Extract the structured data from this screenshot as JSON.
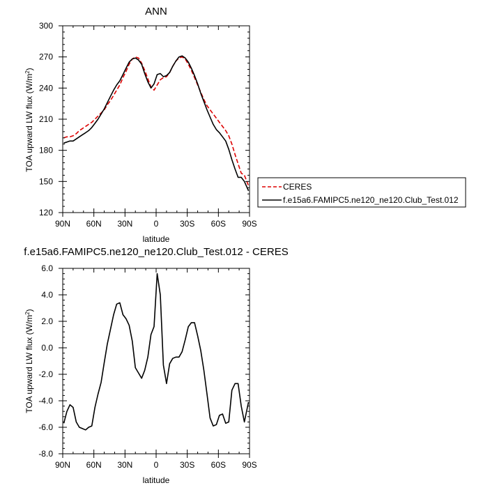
{
  "chart_data": [
    {
      "type": "line",
      "title": "ANN",
      "xlabel": "latitude",
      "ylabel": "TOA upward LW flux (W/m",
      "ylabel_sup": "2",
      "ylabel_close": ")",
      "xlim": [
        90,
        -90
      ],
      "ylim": [
        120,
        300
      ],
      "xticks": [
        90,
        60,
        30,
        0,
        -30,
        -60,
        -90
      ],
      "xticklabels": [
        "90N",
        "60N",
        "30N",
        "0",
        "30S",
        "60S",
        "90S"
      ],
      "yticks": [
        120,
        150,
        180,
        210,
        240,
        270,
        300
      ],
      "yticklabels": [
        "120",
        "150",
        "180",
        "210",
        "240",
        "270",
        "300"
      ],
      "legend": "right",
      "series": [
        {
          "name": "CERES",
          "color": "#dd0000",
          "dash": true,
          "x": [
            89,
            86,
            83,
            80,
            77,
            74,
            71,
            68,
            65,
            62,
            59,
            56,
            53,
            50,
            47,
            44,
            41,
            38,
            35,
            32,
            29,
            26,
            23,
            20,
            17,
            14,
            11,
            8,
            5,
            2,
            -1,
            -4,
            -7,
            -10,
            -13,
            -16,
            -19,
            -22,
            -25,
            -28,
            -31,
            -34,
            -37,
            -40,
            -43,
            -46,
            -49,
            -52,
            -55,
            -58,
            -61,
            -64,
            -67,
            -70,
            -73,
            -76,
            -79,
            -82,
            -85,
            -89
          ],
          "y": [
            192,
            193,
            193,
            194,
            196,
            199,
            201,
            203,
            205,
            207,
            210,
            213,
            216,
            219,
            224,
            228,
            233,
            238,
            243,
            250,
            256,
            263,
            268,
            270,
            269,
            264,
            257,
            249,
            241,
            238,
            243,
            248,
            250,
            251,
            255,
            261,
            266,
            269,
            270,
            268,
            263,
            257,
            250,
            243,
            236,
            229,
            223,
            219,
            215,
            211,
            207,
            203,
            199,
            194,
            186,
            176,
            167,
            158,
            156,
            146
          ]
        },
        {
          "name": "f.e15a6.FAMIPC5.ne120_ne120.Club_Test.012",
          "color": "#000000",
          "dash": false,
          "x": [
            89,
            86,
            83,
            80,
            77,
            74,
            71,
            68,
            65,
            62,
            59,
            56,
            53,
            50,
            47,
            44,
            41,
            38,
            35,
            32,
            29,
            26,
            23,
            20,
            17,
            14,
            11,
            8,
            5,
            2,
            -1,
            -4,
            -7,
            -10,
            -13,
            -16,
            -19,
            -22,
            -25,
            -28,
            -31,
            -34,
            -37,
            -40,
            -43,
            -46,
            -49,
            -52,
            -55,
            -58,
            -61,
            -64,
            -67,
            -70,
            -73,
            -76,
            -79,
            -82,
            -85,
            -89
          ],
          "y": [
            187,
            188,
            189,
            189,
            191,
            193,
            195,
            197,
            199,
            202,
            206,
            210,
            215,
            220,
            226,
            232,
            238,
            243,
            247,
            253,
            259,
            265,
            268,
            269,
            267,
            263,
            254,
            246,
            240,
            244,
            253,
            254,
            251,
            252,
            255,
            261,
            266,
            270,
            271,
            269,
            265,
            259,
            252,
            244,
            235,
            227,
            219,
            212,
            205,
            200,
            197,
            193,
            189,
            181,
            171,
            162,
            154,
            154,
            150,
            141
          ]
        }
      ]
    },
    {
      "type": "line",
      "title": "f.e15a6.FAMIPC5.ne120_ne120.Club_Test.012 - CERES",
      "xlabel": "latitude",
      "ylabel": "TOA upward LW flux (W/m",
      "ylabel_sup": "2",
      "ylabel_close": ")",
      "xlim": [
        90,
        -90
      ],
      "ylim": [
        -8,
        6
      ],
      "xticks": [
        90,
        60,
        30,
        0,
        -30,
        -60,
        -90
      ],
      "xticklabels": [
        "90N",
        "60N",
        "30N",
        "0",
        "30S",
        "60S",
        "90S"
      ],
      "yticks": [
        -8,
        -6,
        -4,
        -2,
        0,
        2,
        4,
        6
      ],
      "yticklabels": [
        "-8.0",
        "-6.0",
        "-4.0",
        "-2.0",
        "0.0",
        "2.0",
        "4.0",
        "6.0"
      ],
      "series": [
        {
          "color": "#000000",
          "x": [
            89,
            86,
            83,
            80,
            77,
            74,
            71,
            68,
            65,
            62,
            59,
            56,
            53,
            50,
            47,
            44,
            41,
            38,
            35,
            32,
            29,
            26,
            23,
            20,
            17,
            14,
            11,
            8,
            5,
            2,
            -1,
            -4,
            -7,
            -10,
            -13,
            -16,
            -19,
            -22,
            -25,
            -28,
            -31,
            -34,
            -37,
            -40,
            -43,
            -46,
            -49,
            -52,
            -55,
            -58,
            -61,
            -64,
            -67,
            -70,
            -73,
            -76,
            -79,
            -82,
            -85,
            -89
          ],
          "y": [
            -5.7,
            -4.8,
            -4.3,
            -4.5,
            -5.6,
            -6.0,
            -6.1,
            -6.2,
            -6.0,
            -5.9,
            -4.5,
            -3.5,
            -2.6,
            -1.1,
            0.3,
            1.4,
            2.5,
            3.3,
            3.4,
            2.5,
            2.2,
            1.7,
            0.5,
            -1.5,
            -1.9,
            -2.3,
            -1.7,
            -0.7,
            1.0,
            1.6,
            5.6,
            4.0,
            -1.3,
            -2.7,
            -1.2,
            -0.8,
            -0.7,
            -0.7,
            -0.3,
            0.6,
            1.6,
            1.9,
            1.9,
            0.9,
            -0.2,
            -1.7,
            -3.5,
            -5.3,
            -5.9,
            -5.8,
            -5.1,
            -5.0,
            -5.7,
            -5.6,
            -3.2,
            -2.7,
            -2.7,
            -4.4,
            -5.6,
            -4.1
          ]
        }
      ]
    }
  ]
}
